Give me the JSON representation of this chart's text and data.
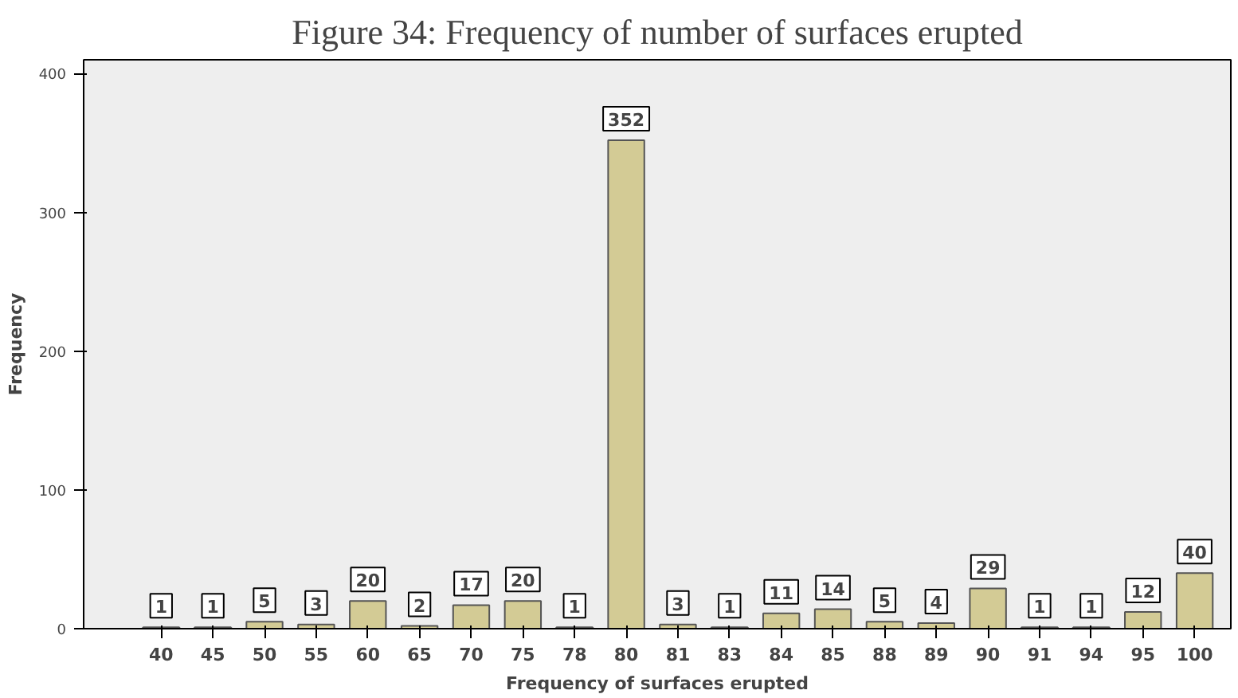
{
  "chart_data": {
    "type": "bar",
    "title": "Figure 34: Frequency of number of surfaces erupted",
    "xlabel": "Frequency of surfaces erupted",
    "ylabel": "Frequency",
    "categories": [
      "40",
      "45",
      "50",
      "55",
      "60",
      "65",
      "70",
      "75",
      "78",
      "80",
      "81",
      "83",
      "84",
      "85",
      "88",
      "89",
      "90",
      "91",
      "94",
      "95",
      "100"
    ],
    "values": [
      1,
      1,
      5,
      3,
      20,
      2,
      17,
      20,
      1,
      352,
      3,
      1,
      11,
      14,
      5,
      4,
      29,
      1,
      1,
      12,
      40
    ],
    "color": "#d3cb95",
    "ylim": [
      0,
      410
    ],
    "yticks": [
      0,
      100,
      200,
      300,
      400
    ],
    "grid": false,
    "data_labels": true
  }
}
